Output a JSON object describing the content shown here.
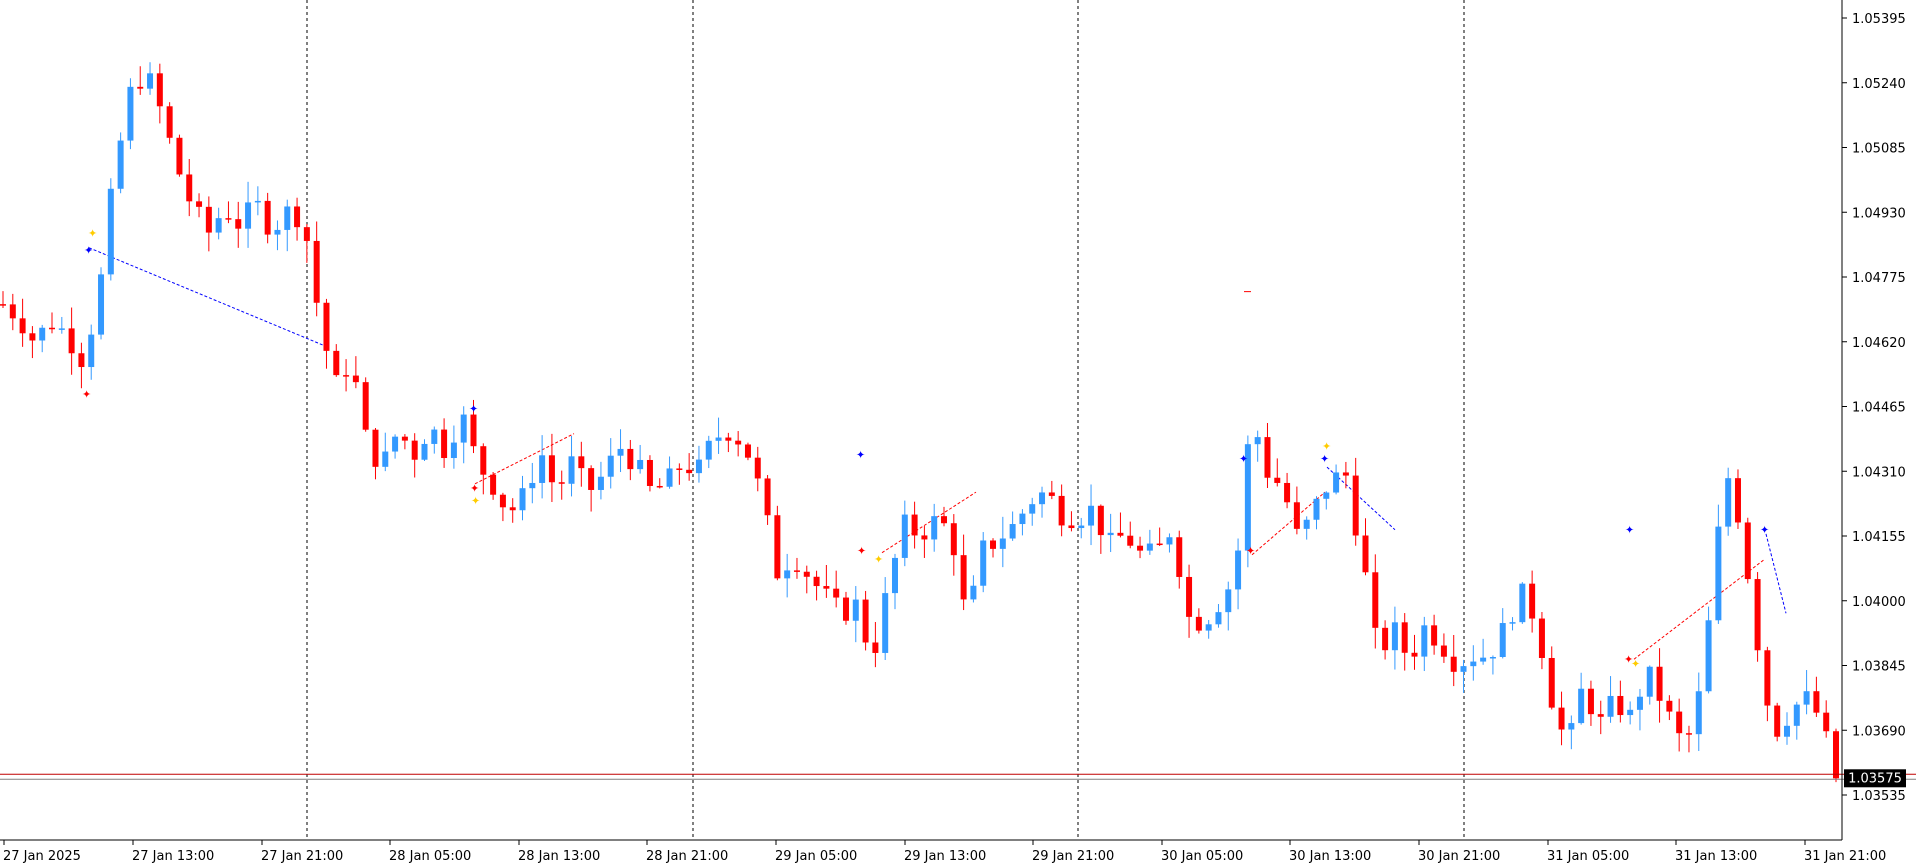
{
  "colors": {
    "background": "#ffffff",
    "bull": "#3399ff",
    "bear": "#ff0000",
    "grid": "#000000",
    "price_line": "#c00000",
    "bid_line": "#808080",
    "price_label_bg": "#000000",
    "price_label_text": "#ffffff",
    "marker_blue": "#0000ff",
    "marker_red": "#ff0000",
    "marker_yellow": "#ffcc00"
  },
  "chart_data": {
    "type": "candlestick",
    "ylim": [
      1.03455,
      1.05445
    ],
    "y_ticks": [
      "1.05395",
      "1.05240",
      "1.05085",
      "1.04930",
      "1.04775",
      "1.04620",
      "1.04465",
      "1.04310",
      "1.04155",
      "1.04000",
      "1.03845",
      "1.03690",
      "1.03535"
    ],
    "y_tick_values": [
      1.05395,
      1.0524,
      1.05085,
      1.0493,
      1.04775,
      1.0462,
      1.04465,
      1.0431,
      1.04155,
      1.04,
      1.03845,
      1.0369,
      1.03535
    ],
    "x_ticks": [
      "27 Jan 2025",
      "27 Jan 13:00",
      "27 Jan 21:00",
      "28 Jan 05:00",
      "28 Jan 13:00",
      "28 Jan 21:00",
      "29 Jan 05:00",
      "29 Jan 13:00",
      "29 Jan 21:00",
      "30 Jan 05:00",
      "30 Jan 13:00",
      "30 Jan 21:00",
      "31 Jan 05:00",
      "31 Jan 13:00",
      "31 Jan 21:00"
    ],
    "day_separators": [
      "27 Jan 21:00",
      "28 Jan 21:00",
      "29 Jan 21:00",
      "30 Jan 21:00"
    ],
    "current_price": "1.03575",
    "current_price_value": 1.03575,
    "candle_count": 188,
    "key_prices": [
      1.0471,
      1.0468,
      1.0462,
      1.0467,
      1.0464,
      1.0458,
      1.0471,
      1.0501,
      1.0521,
      1.0527,
      1.0517,
      1.0504,
      1.0494,
      1.0488,
      1.0494,
      1.049,
      1.0495,
      1.0489,
      1.0493,
      1.0492,
      1.0468,
      1.0451,
      1.0458,
      1.0438,
      1.0432,
      1.0441,
      1.0435,
      1.0442,
      1.0436,
      1.0445,
      1.0433,
      1.0428,
      1.0421,
      1.0425,
      1.0436,
      1.0426,
      1.0433,
      1.0426,
      1.043,
      1.0437,
      1.0433,
      1.0426,
      1.0428,
      1.0433,
      1.0431,
      1.0439,
      1.0441,
      1.0437,
      1.0425,
      1.0407,
      1.0411,
      1.0406,
      1.0401,
      1.0397,
      1.0399,
      1.0386,
      1.0403,
      1.0418,
      1.0416,
      1.0419,
      1.0417,
      1.0394,
      1.0412,
      1.0415,
      1.0418,
      1.0424,
      1.0426,
      1.0421,
      1.042,
      1.0422,
      1.0413,
      1.0416,
      1.0411,
      1.0411,
      1.0418,
      1.0396,
      1.0395,
      1.04,
      1.0406,
      1.0445,
      1.0431,
      1.0427,
      1.0414,
      1.0422,
      1.0429,
      1.043,
      1.0411,
      1.0387,
      1.0393,
      1.0386,
      1.0394,
      1.039,
      1.0385,
      1.0387,
      1.0387,
      1.0393,
      1.0402,
      1.0396,
      1.0377,
      1.0364,
      1.038,
      1.037,
      1.0376,
      1.0372,
      1.0383,
      1.0376,
      1.0367,
      1.0368,
      1.0396,
      1.0432,
      1.0418,
      1.0391,
      1.0368,
      1.0373,
      1.0377,
      1.0372,
      1.0357
    ]
  },
  "markers": {
    "arrow_glyph": "✦",
    "dash_glyph": "−"
  }
}
